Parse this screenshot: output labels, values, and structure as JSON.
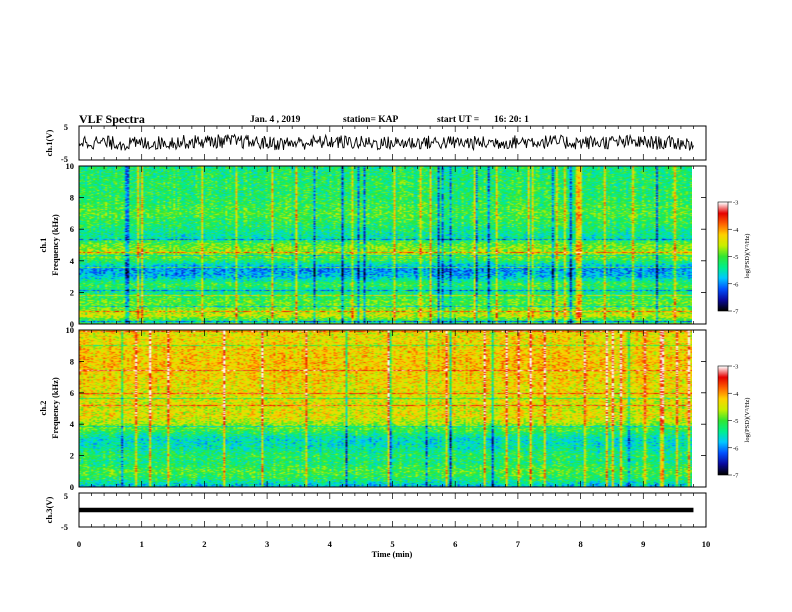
{
  "header": {
    "title": "VLF Spectra",
    "date": "Jan. 4 , 2019",
    "station": "station= KAP",
    "start_label": "start UT =",
    "start_time": "16: 20: 1"
  },
  "colors": {
    "waveform": "#000000",
    "colormap": [
      "#000000",
      "#0a0aa0",
      "#0050ff",
      "#00c8ff",
      "#00f08c",
      "#32e632",
      "#c8f000",
      "#ffd200",
      "#ff6400",
      "#e60000",
      "#ffffff"
    ]
  },
  "chart_data": [
    {
      "type": "line",
      "panel": "ch1-waveform",
      "ylabel": "ch.1(V)",
      "ylim": [
        -5,
        5
      ],
      "yticks": [
        "5",
        "-5"
      ],
      "xlim": [
        0,
        10
      ],
      "description_series": [
        {
          "x_min": [
            0,
            0.8,
            1.6,
            2.4,
            3.2,
            4.0,
            4.8,
            5.6,
            6.4,
            7.2,
            8.0,
            8.8,
            9.8
          ],
          "y_volts": [
            0.5,
            -0.3,
            0.3,
            0.6,
            -0.2,
            0.4,
            -0.1,
            0.2,
            0.0,
            0.5,
            0.1,
            0.3,
            -0.2
          ]
        }
      ]
    },
    {
      "type": "heatmap",
      "panel": "ch1-spectrogram",
      "ylabel": "Frequency (kHz)",
      "channel_label": "ch.1",
      "ylim": [
        0,
        10
      ],
      "xlim": [
        0,
        10
      ],
      "yticks": [
        "0",
        "2",
        "4",
        "6",
        "8",
        "10"
      ],
      "colorbar": {
        "label": "log(PSD)(V²/Hz)",
        "range": [
          -7,
          -3
        ],
        "ticks": [
          "-3",
          "-4",
          "-5",
          "-6",
          "-7"
        ]
      },
      "profile": {
        "freq_khz": [
          0,
          0.5,
          1.0,
          1.5,
          2.0,
          2.5,
          3.0,
          3.5,
          4.0,
          4.5,
          5.0,
          5.5,
          6.0,
          7.0,
          8.0,
          9.0,
          9.8
        ],
        "log_psd": [
          -5.6,
          -4.5,
          -4.9,
          -5.0,
          -5.4,
          -5.1,
          -5.8,
          -6.0,
          -5.2,
          -4.7,
          -4.9,
          -5.5,
          -5.3,
          -5.0,
          -5.2,
          -5.2,
          -5.3
        ]
      }
    },
    {
      "type": "heatmap",
      "panel": "ch2-spectrogram",
      "ylabel": "Frequency (kHz)",
      "channel_label": "ch.2",
      "ylim": [
        0,
        10
      ],
      "xlim": [
        0,
        10
      ],
      "yticks": [
        "0",
        "2",
        "4",
        "6",
        "8",
        "10"
      ],
      "colorbar": {
        "label": "log(PSD)(V²/Hz)",
        "range": [
          -7,
          -3
        ],
        "ticks": [
          "-3",
          "-4",
          "-5",
          "-6",
          "-7"
        ]
      },
      "profile": {
        "freq_khz": [
          0,
          0.5,
          1.0,
          1.5,
          2.0,
          2.5,
          3.0,
          3.5,
          4.0,
          4.5,
          5.0,
          6.0,
          7.0,
          8.0,
          9.0,
          9.8
        ],
        "log_psd": [
          -5.8,
          -5.2,
          -5.0,
          -5.3,
          -5.2,
          -5.5,
          -5.6,
          -5.2,
          -4.7,
          -4.4,
          -4.5,
          -4.4,
          -4.3,
          -4.2,
          -4.3,
          -4.4
        ]
      }
    },
    {
      "type": "line",
      "panel": "ch3-waveform",
      "ylabel": "ch.3(V)",
      "ylim": [
        -5,
        5
      ],
      "yticks": [
        "5",
        "-5"
      ],
      "xlim": [
        0,
        10
      ],
      "series": [
        {
          "x": [
            0,
            9.8
          ],
          "y": [
            0,
            0
          ]
        }
      ]
    }
  ],
  "xaxis": {
    "label": "Time (min)",
    "ticks": [
      "0",
      "1",
      "2",
      "3",
      "4",
      "5",
      "6",
      "7",
      "8",
      "9",
      "10"
    ]
  }
}
